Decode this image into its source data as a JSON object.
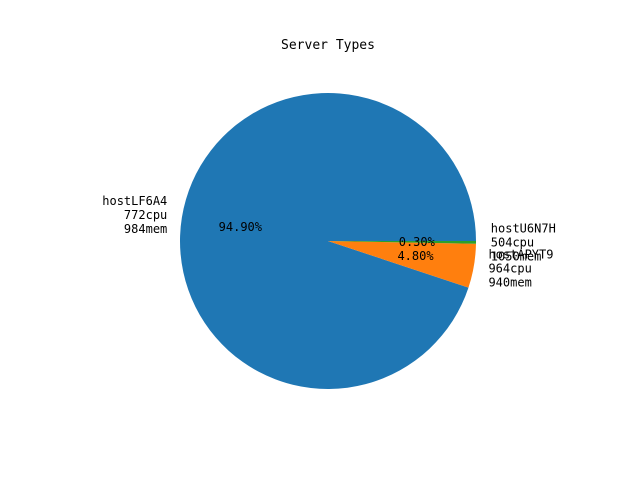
{
  "chart_data": {
    "type": "pie",
    "title": "Server Types",
    "slices": [
      {
        "label_lines": [
          "hostLF6A4",
          "772cpu",
          "984mem"
        ],
        "value": 94.9,
        "pct_label": "94.90%",
        "color": "#1f77b4"
      },
      {
        "label_lines": [
          "hostAPYT9",
          "964cpu",
          "940mem"
        ],
        "value": 4.8,
        "pct_label": "4.80%",
        "color": "#ff7f0e"
      },
      {
        "label_lines": [
          "hostU6N7H",
          "504cpu",
          "1050mem"
        ],
        "value": 0.3,
        "pct_label": "0.30%",
        "color": "#2ca02c"
      }
    ],
    "legend": "none"
  }
}
